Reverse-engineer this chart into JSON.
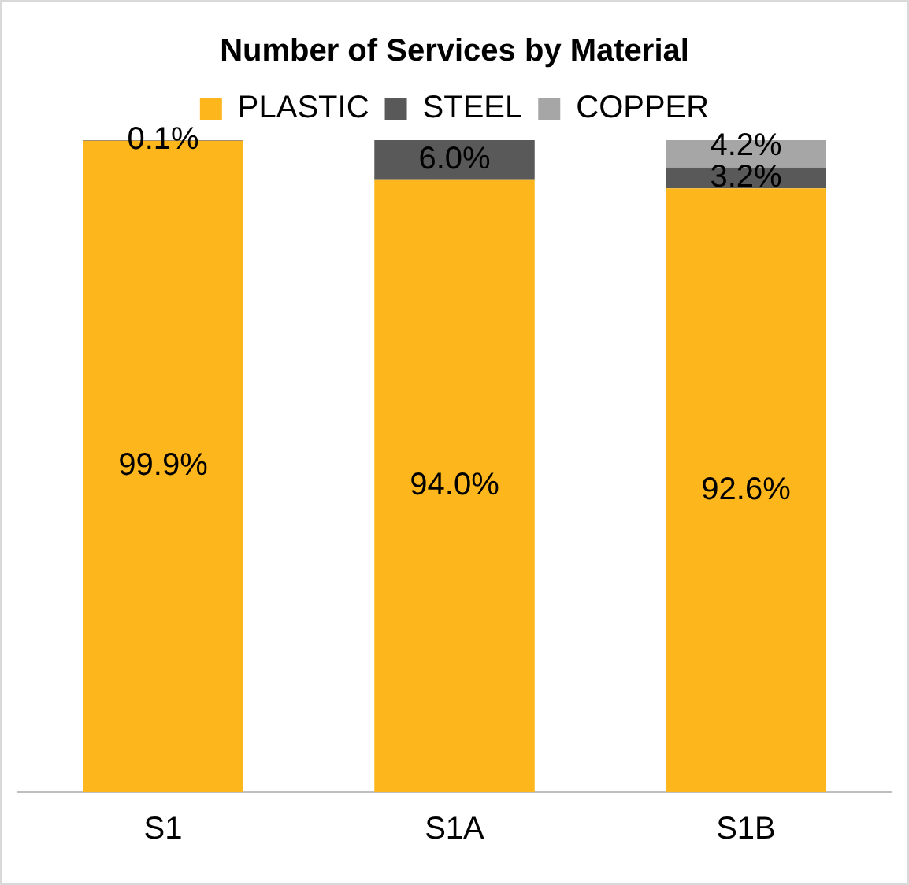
{
  "chart_data": {
    "type": "bar",
    "title": "Number of Services by Material",
    "categories": [
      "S1",
      "S1A",
      "S1B"
    ],
    "stacked": true,
    "ylim": [
      0,
      100
    ],
    "tick_labels": "x",
    "legend": "top",
    "grid": false,
    "series": [
      {
        "name": "PLASTIC",
        "color": "#fdb71c",
        "values": [
          99.9,
          94.0,
          92.6
        ],
        "value_labels": [
          "99.9%",
          "94.0%",
          "92.6%"
        ]
      },
      {
        "name": "STEEL",
        "color": "#595959",
        "values": [
          0.1,
          6.0,
          3.2
        ],
        "value_labels": [
          "0.1%",
          "6.0%",
          "3.2%"
        ]
      },
      {
        "name": "COPPER",
        "color": "#a6a6a6",
        "values": [
          null,
          null,
          4.2
        ],
        "value_labels": [
          null,
          null,
          "4.2%"
        ]
      }
    ]
  }
}
